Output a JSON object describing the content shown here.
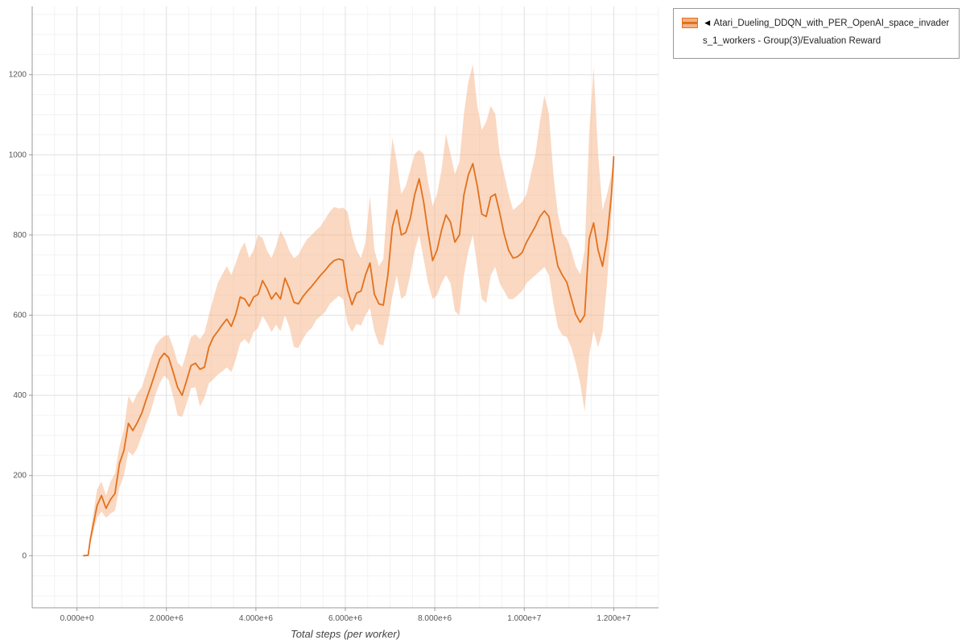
{
  "legend": {
    "collapse_icon": "◄",
    "label": "Atari_Dueling_DDQN_with_PER_OpenAI_space_invaders_1_workers - Group(3)/Evaluation Reward"
  },
  "chart_data": {
    "type": "line",
    "title": "",
    "xlabel": "Total steps (per worker)",
    "ylabel": "",
    "series_name": "Atari_Dueling_DDQN_with_PER_OpenAI_space_invaders_1_workers - Group(3)/Evaluation Reward",
    "line_color": "#e2711d",
    "band_color": "#f5b183",
    "band_opacity": 0.5,
    "x_domain_millions": [
      -1,
      13
    ],
    "y_domain": [
      -130,
      1370
    ],
    "x_tick_values_millions": [
      0,
      2,
      4,
      6,
      8,
      10,
      12
    ],
    "x_tick_labels": [
      "0.000e+0",
      "2.000e+6",
      "4.000e+6",
      "6.000e+6",
      "8.000e+6",
      "1.000e+7",
      "1.200e+7"
    ],
    "y_tick_values": [
      0,
      200,
      400,
      600,
      800,
      1000,
      1200
    ],
    "y_tick_labels": [
      "0",
      "200",
      "400",
      "600",
      "800",
      "1000",
      "1200"
    ],
    "points_format": "[x_millions, lower, mean, upper]",
    "points": [
      [
        0.15,
        0,
        0,
        0
      ],
      [
        0.25,
        0,
        1,
        2
      ],
      [
        0.3,
        30,
        40,
        55
      ],
      [
        0.45,
        95,
        125,
        165
      ],
      [
        0.55,
        110,
        150,
        185
      ],
      [
        0.65,
        95,
        118,
        150
      ],
      [
        0.75,
        105,
        140,
        185
      ],
      [
        0.85,
        112,
        155,
        205
      ],
      [
        0.95,
        170,
        230,
        272
      ],
      [
        1.05,
        200,
        262,
        315
      ],
      [
        1.15,
        260,
        330,
        398
      ],
      [
        1.25,
        250,
        312,
        380
      ],
      [
        1.35,
        268,
        332,
        405
      ],
      [
        1.45,
        300,
        356,
        420
      ],
      [
        1.55,
        330,
        390,
        455
      ],
      [
        1.65,
        360,
        422,
        490
      ],
      [
        1.75,
        400,
        456,
        522
      ],
      [
        1.85,
        430,
        490,
        538
      ],
      [
        1.95,
        450,
        505,
        548
      ],
      [
        2.05,
        438,
        494,
        550
      ],
      [
        2.15,
        398,
        458,
        520
      ],
      [
        2.25,
        350,
        420,
        482
      ],
      [
        2.35,
        346,
        400,
        470
      ],
      [
        2.45,
        378,
        436,
        506
      ],
      [
        2.55,
        418,
        474,
        545
      ],
      [
        2.65,
        420,
        480,
        552
      ],
      [
        2.75,
        372,
        465,
        540
      ],
      [
        2.85,
        394,
        470,
        556
      ],
      [
        2.95,
        430,
        520,
        600
      ],
      [
        3.05,
        440,
        545,
        642
      ],
      [
        3.15,
        452,
        560,
        680
      ],
      [
        3.25,
        460,
        576,
        702
      ],
      [
        3.35,
        470,
        590,
        722
      ],
      [
        3.45,
        458,
        572,
        700
      ],
      [
        3.55,
        490,
        602,
        730
      ],
      [
        3.65,
        530,
        645,
        762
      ],
      [
        3.75,
        540,
        640,
        782
      ],
      [
        3.85,
        528,
        622,
        742
      ],
      [
        3.95,
        558,
        645,
        762
      ],
      [
        4.05,
        568,
        652,
        800
      ],
      [
        4.15,
        598,
        686,
        792
      ],
      [
        4.25,
        580,
        666,
        760
      ],
      [
        4.35,
        558,
        640,
        742
      ],
      [
        4.45,
        576,
        656,
        772
      ],
      [
        4.55,
        560,
        640,
        810
      ],
      [
        4.65,
        600,
        692,
        790
      ],
      [
        4.75,
        570,
        666,
        760
      ],
      [
        4.85,
        520,
        632,
        742
      ],
      [
        4.95,
        518,
        628,
        750
      ],
      [
        5.05,
        540,
        646,
        772
      ],
      [
        5.15,
        558,
        660,
        790
      ],
      [
        5.25,
        568,
        672,
        800
      ],
      [
        5.35,
        588,
        686,
        812
      ],
      [
        5.45,
        598,
        700,
        822
      ],
      [
        5.55,
        608,
        712,
        840
      ],
      [
        5.65,
        628,
        726,
        858
      ],
      [
        5.75,
        638,
        736,
        870
      ],
      [
        5.85,
        648,
        740,
        866
      ],
      [
        5.95,
        640,
        737,
        868
      ],
      [
        6.05,
        580,
        662,
        858
      ],
      [
        6.15,
        558,
        626,
        800
      ],
      [
        6.25,
        578,
        655,
        762
      ],
      [
        6.35,
        574,
        660,
        742
      ],
      [
        6.45,
        600,
        700,
        782
      ],
      [
        6.55,
        618,
        730,
        898
      ],
      [
        6.65,
        560,
        652,
        762
      ],
      [
        6.75,
        528,
        628,
        722
      ],
      [
        6.85,
        524,
        625,
        740
      ],
      [
        6.95,
        578,
        700,
        900
      ],
      [
        7.05,
        648,
        820,
        1042
      ],
      [
        7.15,
        700,
        862,
        982
      ],
      [
        7.25,
        640,
        800,
        902
      ],
      [
        7.35,
        650,
        806,
        922
      ],
      [
        7.45,
        700,
        840,
        962
      ],
      [
        7.55,
        760,
        900,
        1002
      ],
      [
        7.65,
        800,
        940,
        1012
      ],
      [
        7.75,
        740,
        882,
        1002
      ],
      [
        7.85,
        680,
        806,
        932
      ],
      [
        7.95,
        640,
        736,
        872
      ],
      [
        8.05,
        650,
        762,
        902
      ],
      [
        8.15,
        680,
        812,
        962
      ],
      [
        8.25,
        700,
        850,
        1052
      ],
      [
        8.35,
        680,
        832,
        1002
      ],
      [
        8.45,
        610,
        782,
        952
      ],
      [
        8.55,
        600,
        800,
        982
      ],
      [
        8.65,
        700,
        900,
        1102
      ],
      [
        8.75,
        760,
        950,
        1182
      ],
      [
        8.85,
        800,
        978,
        1225
      ],
      [
        8.95,
        720,
        922,
        1122
      ],
      [
        9.05,
        640,
        852,
        1062
      ],
      [
        9.15,
        630,
        846,
        1082
      ],
      [
        9.25,
        700,
        895,
        1122
      ],
      [
        9.35,
        720,
        902,
        1102
      ],
      [
        9.45,
        680,
        856,
        1002
      ],
      [
        9.55,
        660,
        802,
        952
      ],
      [
        9.65,
        640,
        762,
        902
      ],
      [
        9.75,
        640,
        742,
        862
      ],
      [
        9.85,
        650,
        746,
        872
      ],
      [
        9.95,
        660,
        756,
        882
      ],
      [
        10.05,
        680,
        782,
        902
      ],
      [
        10.15,
        690,
        802,
        952
      ],
      [
        10.25,
        700,
        822,
        1002
      ],
      [
        10.35,
        710,
        846,
        1082
      ],
      [
        10.45,
        720,
        860,
        1148
      ],
      [
        10.55,
        700,
        846,
        1102
      ],
      [
        10.65,
        630,
        782,
        952
      ],
      [
        10.75,
        570,
        722,
        852
      ],
      [
        10.85,
        550,
        700,
        802
      ],
      [
        10.95,
        545,
        682,
        792
      ],
      [
        11.05,
        520,
        642,
        762
      ],
      [
        11.15,
        480,
        602,
        722
      ],
      [
        11.25,
        430,
        582,
        702
      ],
      [
        11.35,
        360,
        600,
        762
      ],
      [
        11.45,
        500,
        790,
        1052
      ],
      [
        11.55,
        560,
        830,
        1218
      ],
      [
        11.65,
        520,
        762,
        1002
      ],
      [
        11.75,
        560,
        722,
        862
      ],
      [
        11.85,
        680,
        790,
        902
      ],
      [
        11.95,
        850,
        902,
        952
      ],
      [
        12.0,
        990,
        995,
        1000
      ]
    ]
  }
}
